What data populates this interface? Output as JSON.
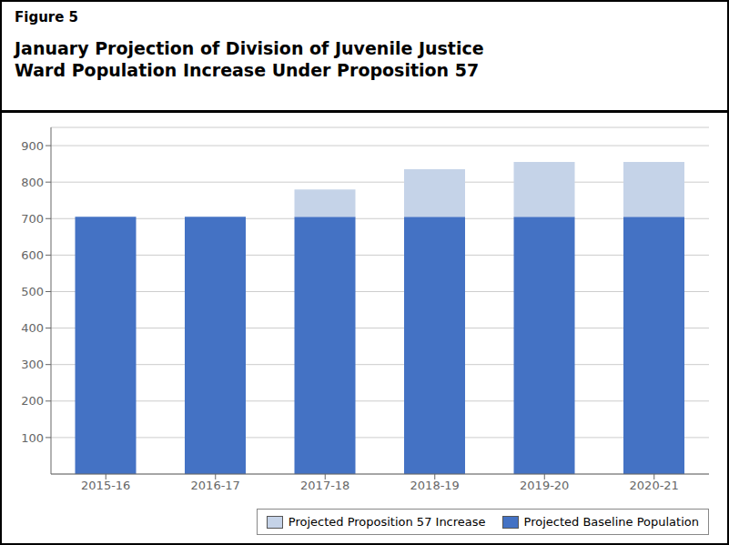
{
  "chart_data": {
    "type": "bar",
    "stacked": true,
    "title": "January Projection of Division of Juvenile Justice\nWard Population Increase Under Proposition 57",
    "annotations": [
      "Figure 5"
    ],
    "categories": [
      "2015-16",
      "2016-17",
      "2017-18",
      "2018-19",
      "2019-20",
      "2020-21"
    ],
    "series": [
      {
        "name": "Projected Baseline Population",
        "color": "#4472C4",
        "values": [
          705,
          705,
          705,
          705,
          705,
          705
        ]
      },
      {
        "name": "Projected Proposition 57 Increase",
        "color": "#C5D3E8",
        "values": [
          0,
          0,
          75,
          130,
          150,
          150
        ]
      }
    ],
    "ylim": [
      0,
      950
    ],
    "yticks": [
      100,
      200,
      300,
      400,
      500,
      600,
      700,
      800,
      900
    ],
    "grid": true,
    "legend": "lower right"
  }
}
